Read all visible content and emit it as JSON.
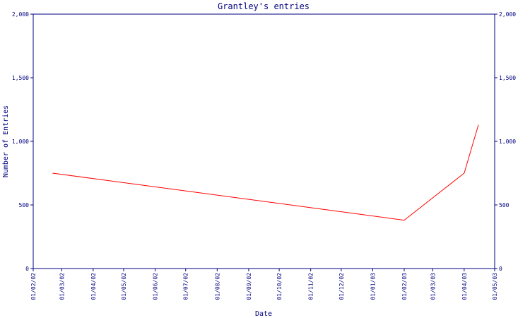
{
  "chart_data": {
    "type": "line",
    "title": "Grantley's entries",
    "x_label": "Date",
    "y_label": "Number of Entries",
    "x": [
      "2002-02-20",
      "2003-02-01",
      "2003-04-01",
      "2003-04-15"
    ],
    "series": [
      {
        "name": "entries",
        "color": "#ff0000",
        "values": [
          750,
          380,
          750,
          1130
        ]
      }
    ],
    "xlim": [
      "2002-02-01",
      "2003-05-01"
    ],
    "xticks": [
      {
        "value": "2002-02-01",
        "label": "01/02/02"
      },
      {
        "value": "2002-03-01",
        "label": "01/03/02"
      },
      {
        "value": "2002-04-01",
        "label": "01/04/02"
      },
      {
        "value": "2002-05-01",
        "label": "01/05/02"
      },
      {
        "value": "2002-06-01",
        "label": "01/06/02"
      },
      {
        "value": "2002-07-01",
        "label": "01/07/02"
      },
      {
        "value": "2002-08-01",
        "label": "01/08/02"
      },
      {
        "value": "2002-09-01",
        "label": "01/09/02"
      },
      {
        "value": "2002-10-01",
        "label": "01/10/02"
      },
      {
        "value": "2002-11-01",
        "label": "01/11/02"
      },
      {
        "value": "2002-12-01",
        "label": "01/12/02"
      },
      {
        "value": "2003-01-01",
        "label": "01/01/03"
      },
      {
        "value": "2003-02-01",
        "label": "01/02/03"
      },
      {
        "value": "2003-03-01",
        "label": "01/03/03"
      },
      {
        "value": "2003-04-01",
        "label": "01/04/03"
      },
      {
        "value": "2003-05-01",
        "label": "01/05/03"
      }
    ],
    "ylim": [
      0,
      2000
    ],
    "yticks": [
      0,
      500,
      {
        "value": 1000,
        "label": "1,000"
      },
      {
        "value": 1500,
        "label": "1,500"
      },
      {
        "value": 2000,
        "label": "2,000"
      }
    ],
    "axis_color": "#000080"
  }
}
